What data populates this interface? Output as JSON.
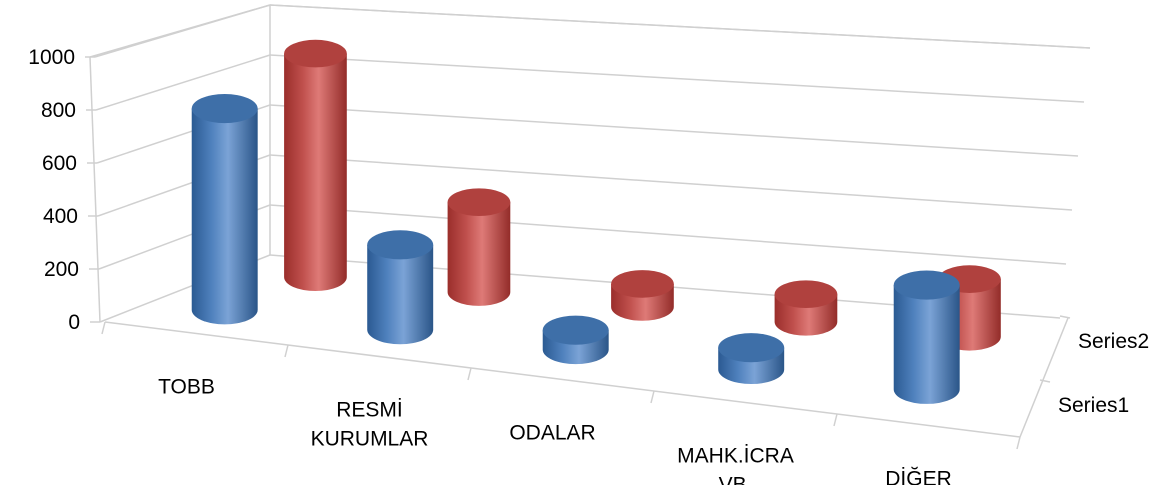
{
  "chart_data": {
    "type": "bar",
    "style": "3d-cylinder",
    "categories": [
      "TOBB",
      "RESMİ KURUMLAR",
      "ODALAR",
      "MAHK.İCRA VB.",
      "DİĞER"
    ],
    "category_lines": [
      [
        "TOBB"
      ],
      [
        "RESMİ",
        "KURUMLAR"
      ],
      [
        "ODALAR"
      ],
      [
        "MAHK.İCRA",
        "VB."
      ],
      [
        "DİĞER"
      ]
    ],
    "series": [
      {
        "name": "Series1",
        "values": [
          830,
          350,
          80,
          90,
          430
        ],
        "color": "#4F81BD"
      },
      {
        "name": "Series2",
        "values": [
          970,
          390,
          100,
          120,
          250
        ],
        "color": "#C0504D"
      }
    ],
    "ylim": [
      0,
      1000
    ],
    "yticks": [
      "0",
      "200",
      "400",
      "600",
      "800",
      "1000"
    ],
    "grid": true,
    "legend": "depth-axis-right"
  }
}
